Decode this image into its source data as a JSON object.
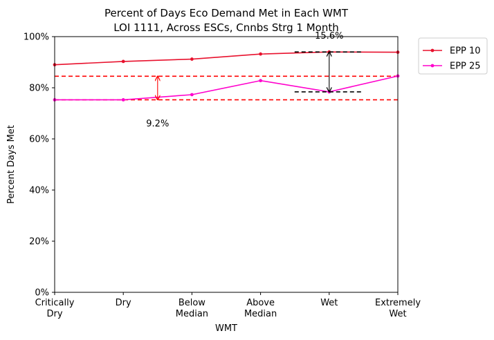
{
  "chart_data": {
    "type": "line",
    "title_line1": "Percent of Days Eco Demand Met in Each WMT",
    "title_line2": "LOI 1111, Across ESCs, Cnnbs Strg 1 Month",
    "xlabel": "WMT",
    "ylabel": "Percent Days Met",
    "categories": [
      [
        "Critically",
        "Dry"
      ],
      [
        "Dry"
      ],
      [
        "Below",
        "Median"
      ],
      [
        "Above",
        "Median"
      ],
      [
        "Wet"
      ],
      [
        "Extremely",
        "Wet"
      ]
    ],
    "ylim": [
      0,
      100
    ],
    "yticks": [
      0,
      20,
      40,
      60,
      80,
      100
    ],
    "ytick_labels": [
      "0%",
      "20%",
      "40%",
      "60%",
      "80%",
      "100%"
    ],
    "grid": false,
    "legend_position": "outside-top-right",
    "series": [
      {
        "name": "EPP 10",
        "color": "#e8112d",
        "values": [
          89.0,
          90.3,
          91.2,
          93.2,
          94.0,
          93.9
        ]
      },
      {
        "name": "EPP 25",
        "color": "#ff00cc",
        "values": [
          75.3,
          75.3,
          77.3,
          82.8,
          78.4,
          84.6
        ]
      }
    ],
    "reference_lines": [
      {
        "y": 84.5,
        "color": "#ff0000",
        "style": "dashed"
      },
      {
        "y": 75.3,
        "color": "#ff0000",
        "style": "dashed"
      }
    ],
    "annotations": [
      {
        "label": "9.2%",
        "color": "#ff0000",
        "x_index": 1.5,
        "y_from": 75.3,
        "y_to": 84.5,
        "label_y": 66.0
      },
      {
        "label": "15.6%",
        "color": "#000000",
        "x_index": 4,
        "y_from": 78.4,
        "y_to": 94.0,
        "label_y": 100.3,
        "dash_y": [
          94.0,
          78.4
        ]
      }
    ]
  }
}
